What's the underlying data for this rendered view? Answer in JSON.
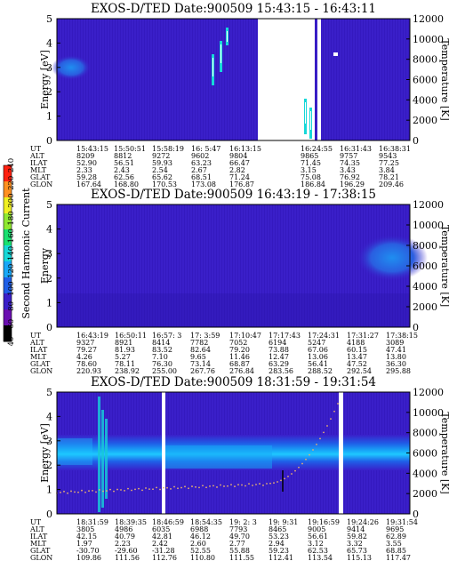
{
  "colors": {
    "background_plasma": "#3a1fc9",
    "deep_violet": "#2a15a8",
    "band_cyan": "#1ec8ff",
    "band_blue": "#1790f0",
    "gap": "#ffffff",
    "temp_trace": "#e8b070"
  },
  "colorbar": {
    "label": "Second Harmonic Current",
    "ticks": [
      "40",
      "60",
      "80",
      "100",
      "120",
      "140",
      "160",
      "180",
      "200",
      "220",
      "240"
    ],
    "stops": [
      "#000000",
      "#6a0fb0",
      "#3a1fc9",
      "#1f5fe8",
      "#18a8f8",
      "#16d8d8",
      "#19e070",
      "#8fe830",
      "#f0f020",
      "#ff9020",
      "#ff2010"
    ]
  },
  "chart_data": [
    {
      "type": "heatmap",
      "title": "EXOS-D/TED  Date:900509  15:43:15 - 16:43:11",
      "ylabel": "Energy [eV]",
      "y2label": "Temperature [K]",
      "ylim": [
        0,
        5
      ],
      "y_ticks": [
        "0",
        "1",
        "2",
        "3",
        "4",
        "5"
      ],
      "y2lim": [
        0,
        12000
      ],
      "y2_ticks": [
        "0",
        "2000",
        "4000",
        "6000",
        "8000",
        "10000",
        "12000"
      ],
      "table": {
        "row_labels": [
          "UT",
          "ALT",
          "ILAT",
          "MLT",
          "GLAT",
          "GLON"
        ],
        "columns": [
          [
            "15:43:15",
            "8209",
            "52.90",
            "2.33",
            "59.28",
            "167.64"
          ],
          [
            "15:50:51",
            "8812",
            "56.51",
            "2.43",
            "62.56",
            "168.80"
          ],
          [
            "15:58:19",
            "9272",
            "59.93",
            "2.54",
            "65.62",
            "170.53"
          ],
          [
            "16: 5:47",
            "9602",
            "63.23",
            "2.67",
            "68.51",
            "173.08"
          ],
          [
            "16:13:15",
            "9804",
            "66.47",
            "2.82",
            "71.24",
            "176.87"
          ],
          [
            "16:24:55",
            "9865",
            "71.45",
            "3.15",
            "75.08",
            "186.84"
          ],
          [
            "16:31:43",
            "9757",
            "74.35",
            "3.43",
            "76.92",
            "196.29"
          ],
          [
            "16:38:31",
            "9543",
            "77.25",
            "3.84",
            "78.21",
            "209.46"
          ]
        ]
      }
    },
    {
      "type": "heatmap",
      "title": "EXOS-D/TED  Date:900509  16:43:19 - 17:38:15",
      "ylabel": "Energy",
      "y2label": "Temperature [K]",
      "ylim": [
        0,
        5
      ],
      "y_ticks": [
        "0",
        "1",
        "2",
        "3",
        "4",
        "5"
      ],
      "y2lim": [
        0,
        12000
      ],
      "y2_ticks": [
        "0",
        "2000",
        "4000",
        "6000",
        "8000",
        "10000",
        "12000"
      ],
      "table": {
        "row_labels": [
          "UT",
          "ALT",
          "ILAT",
          "MLT",
          "GLAT",
          "GLON"
        ],
        "columns": [
          [
            "16:43:19",
            "9327",
            "79.27",
            "4.26",
            "78.60",
            "220.93"
          ],
          [
            "16:50:11",
            "8921",
            "81.93",
            "5.27",
            "78.11",
            "238.92"
          ],
          [
            "16:57: 3",
            "8414",
            "83.52",
            "7.10",
            "76.30",
            "255.00"
          ],
          [
            "17: 3:59",
            "7782",
            "82.64",
            "9.65",
            "73.14",
            "267.76"
          ],
          [
            "17:10:47",
            "7052",
            "79.20",
            "11.46",
            "68.87",
            "276.84"
          ],
          [
            "17:17:43",
            "6194",
            "73.88",
            "12.47",
            "63.29",
            "283.56"
          ],
          [
            "17:24:31",
            "5247",
            "67.06",
            "13.06",
            "56.41",
            "288.52"
          ],
          [
            "17:31:27",
            "4188",
            "60.15",
            "13.47",
            "47.52",
            "292.54"
          ],
          [
            "17:38:15",
            "3089",
            "47.41",
            "13.80",
            "36.30",
            "295.88"
          ]
        ]
      }
    },
    {
      "type": "heatmap",
      "title": "EXOS-D/TED  Date:900509  18:31:59 - 19:31:54",
      "ylabel": "Energy [eV]",
      "y2label": "Temperature [K]",
      "ylim": [
        0,
        5
      ],
      "y_ticks": [
        "0",
        "1",
        "2",
        "3",
        "4",
        "5"
      ],
      "y2lim": [
        0,
        12000
      ],
      "y2_ticks": [
        "0",
        "2000",
        "4000",
        "6000",
        "8000",
        "10000",
        "12000"
      ],
      "table": {
        "row_labels": [
          "UT",
          "ALT",
          "ILAT",
          "MLT",
          "GLAT",
          "GLON"
        ],
        "columns": [
          [
            "18:31:59",
            "3805",
            "42.15",
            "1.97",
            "-30.70",
            "109.86"
          ],
          [
            "18:39:35",
            "4986",
            "40.79",
            "2.23",
            "-29.60",
            "111.56"
          ],
          [
            "18:46:59",
            "6035",
            "42.81",
            "2.42",
            "-31.28",
            "112.76"
          ],
          [
            "18:54:35",
            "6988",
            "46.12",
            "2.60",
            "52.55",
            "110.80"
          ],
          [
            "19: 2: 3",
            "7793",
            "49.70",
            "2.77",
            "55.88",
            "111.55"
          ],
          [
            "19: 9:31",
            "8465",
            "53.23",
            "2.94",
            "59.23",
            "112.41"
          ],
          [
            "19:16:59",
            "9005",
            "56.61",
            "3.12",
            "62.53",
            "113.54"
          ],
          [
            "19:24:26",
            "9414",
            "59.82",
            "3.32",
            "65.73",
            "115.13"
          ],
          [
            "19:31:54",
            "9695",
            "62.89",
            "3.55",
            "68.85",
            "117.47"
          ]
        ]
      }
    }
  ]
}
